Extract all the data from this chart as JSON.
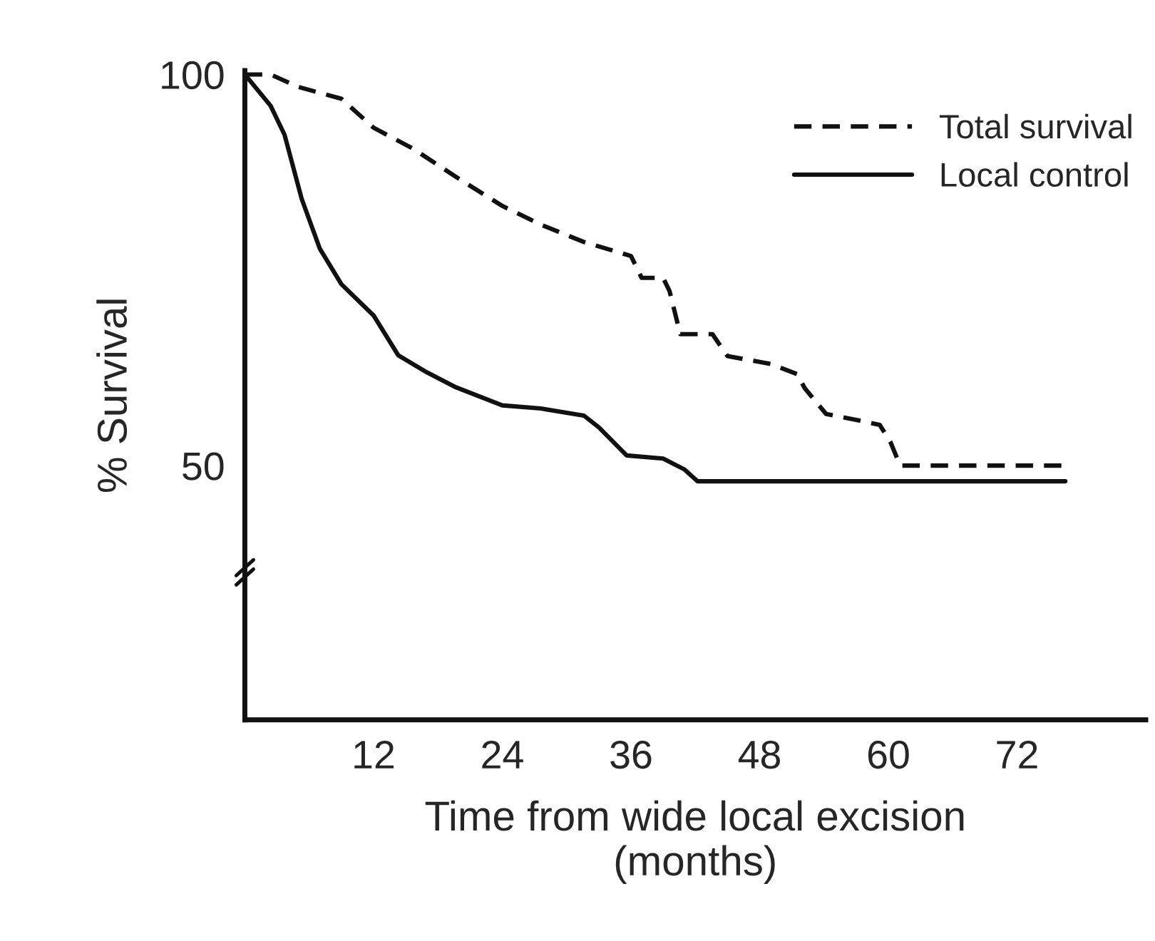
{
  "chart_data": {
    "type": "line",
    "xlabel": "Time from wide local excision\n(months)",
    "ylabel": "% Survival",
    "xlim": [
      0,
      84
    ],
    "ylim": [
      17.5,
      100.5
    ],
    "xticks": [
      12,
      24,
      36,
      48,
      60,
      72
    ],
    "yticks": [
      50,
      100
    ],
    "grid": false,
    "legend": "top right",
    "marker": "none",
    "series": [
      {
        "name": "Total survival",
        "color": "#111111",
        "line_style": "dashed",
        "x": [
          0,
          2.4,
          5,
          9,
          12,
          15.7,
          19.7,
          24,
          27.6,
          31.6,
          36,
          37,
          39,
          39.6,
          40.6,
          43.6,
          45,
          49,
          51.5,
          52.2,
          54.2,
          57.5,
          59.2,
          60.2,
          61.1,
          76.5
        ],
        "values": [
          100,
          100,
          98.4,
          96.9,
          93.2,
          90.5,
          86.9,
          83.2,
          80.8,
          78.6,
          76.8,
          74,
          74,
          72.3,
          66.8,
          66.8,
          64,
          63,
          61.7,
          59.9,
          56.6,
          55.7,
          55.2,
          53,
          50,
          50
        ]
      },
      {
        "name": "Local control",
        "color": "#111111",
        "line_style": "solid",
        "x": [
          0,
          2.4,
          3.7,
          5.3,
          7,
          9,
          12,
          14.3,
          17,
          19.7,
          24,
          27.6,
          31.6,
          33,
          35.6,
          39,
          41,
          42.2,
          76.5
        ],
        "values": [
          100,
          96,
          92.3,
          84.1,
          77.7,
          73.2,
          69.2,
          64.1,
          61.9,
          60,
          57.7,
          57.3,
          56.4,
          54.9,
          51.3,
          50.9,
          49.5,
          48,
          48
        ]
      }
    ]
  }
}
